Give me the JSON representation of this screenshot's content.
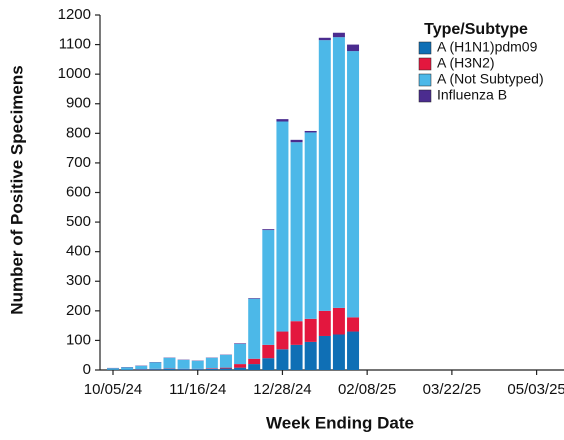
{
  "chart_data": {
    "type": "stacked_bar",
    "x_label": "Week Ending Date",
    "y_label": "Number of Positive Specimens",
    "legend_title": "Type/Subtype",
    "legend_position": "upper right",
    "categories": [
      "10/05/24",
      null,
      null,
      null,
      null,
      null,
      "11/16/24",
      null,
      null,
      null,
      null,
      null,
      "12/28/24",
      null,
      null,
      null,
      null,
      null,
      "02/08/25",
      null,
      null,
      null,
      null,
      null,
      "03/22/25",
      null,
      null,
      null,
      null,
      null,
      "05/03/25",
      null
    ],
    "series": [
      {
        "name": "A (H1N1)pdm09",
        "color": "#0f6fb5",
        "values": [
          1,
          2,
          2,
          3,
          4,
          3,
          3,
          4,
          5,
          8,
          20,
          40,
          70,
          85,
          95,
          115,
          120,
          130,
          null,
          null,
          null,
          null,
          null,
          null,
          null,
          null,
          null,
          null,
          null,
          null,
          null,
          null
        ]
      },
      {
        "name": "A (H3N2)",
        "color": "#e3173e",
        "values": [
          0,
          0,
          1,
          1,
          1,
          1,
          1,
          2,
          3,
          12,
          18,
          45,
          60,
          80,
          78,
          85,
          90,
          48,
          null,
          null,
          null,
          null,
          null,
          null,
          null,
          null,
          null,
          null,
          null,
          null,
          null,
          null
        ]
      },
      {
        "name": "A (Not Subtyped)",
        "color": "#4cb8e8",
        "values": [
          5,
          7,
          11,
          22,
          36,
          30,
          27,
          35,
          43,
          68,
          203,
          388,
          710,
          605,
          630,
          915,
          915,
          900,
          null,
          null,
          null,
          null,
          null,
          null,
          null,
          null,
          null,
          null,
          null,
          null,
          null,
          null
        ]
      },
      {
        "name": "Influenza B",
        "color": "#4b2c8f",
        "values": [
          1,
          1,
          1,
          1,
          1,
          1,
          1,
          1,
          1,
          2,
          2,
          3,
          8,
          8,
          5,
          8,
          15,
          22,
          null,
          null,
          null,
          null,
          null,
          null,
          null,
          null,
          null,
          null,
          null,
          null,
          null,
          null
        ]
      }
    ],
    "ylim": [
      0,
      1200
    ],
    "yticks": [
      0,
      100,
      200,
      300,
      400,
      500,
      600,
      700,
      800,
      900,
      1000,
      1100,
      1200
    ]
  }
}
